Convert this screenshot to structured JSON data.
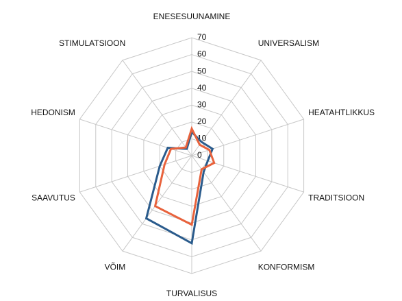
{
  "chart_data": {
    "type": "radar",
    "categories": [
      "ENESESUUNAMINE",
      "UNIVERSALISM",
      "HEATAHTLIKKUS",
      "TRADITSIOON",
      "KONFORMISM",
      "TURVALISUS",
      "VÕIM",
      "SAAVUTUS",
      "HEDONISM",
      "STIMULATSIOON"
    ],
    "series": [
      {
        "color": "#2a5b8c",
        "values": [
          14,
          10,
          13,
          10,
          12,
          52,
          46,
          20,
          15,
          5
        ]
      },
      {
        "color": "#e8623c",
        "values": [
          16,
          8,
          11,
          14,
          10,
          41,
          37,
          17,
          13,
          6
        ]
      }
    ],
    "ylim": [
      0,
      70
    ],
    "yticks": [
      0,
      10,
      20,
      30,
      40,
      50,
      60,
      70
    ],
    "grid": true
  }
}
